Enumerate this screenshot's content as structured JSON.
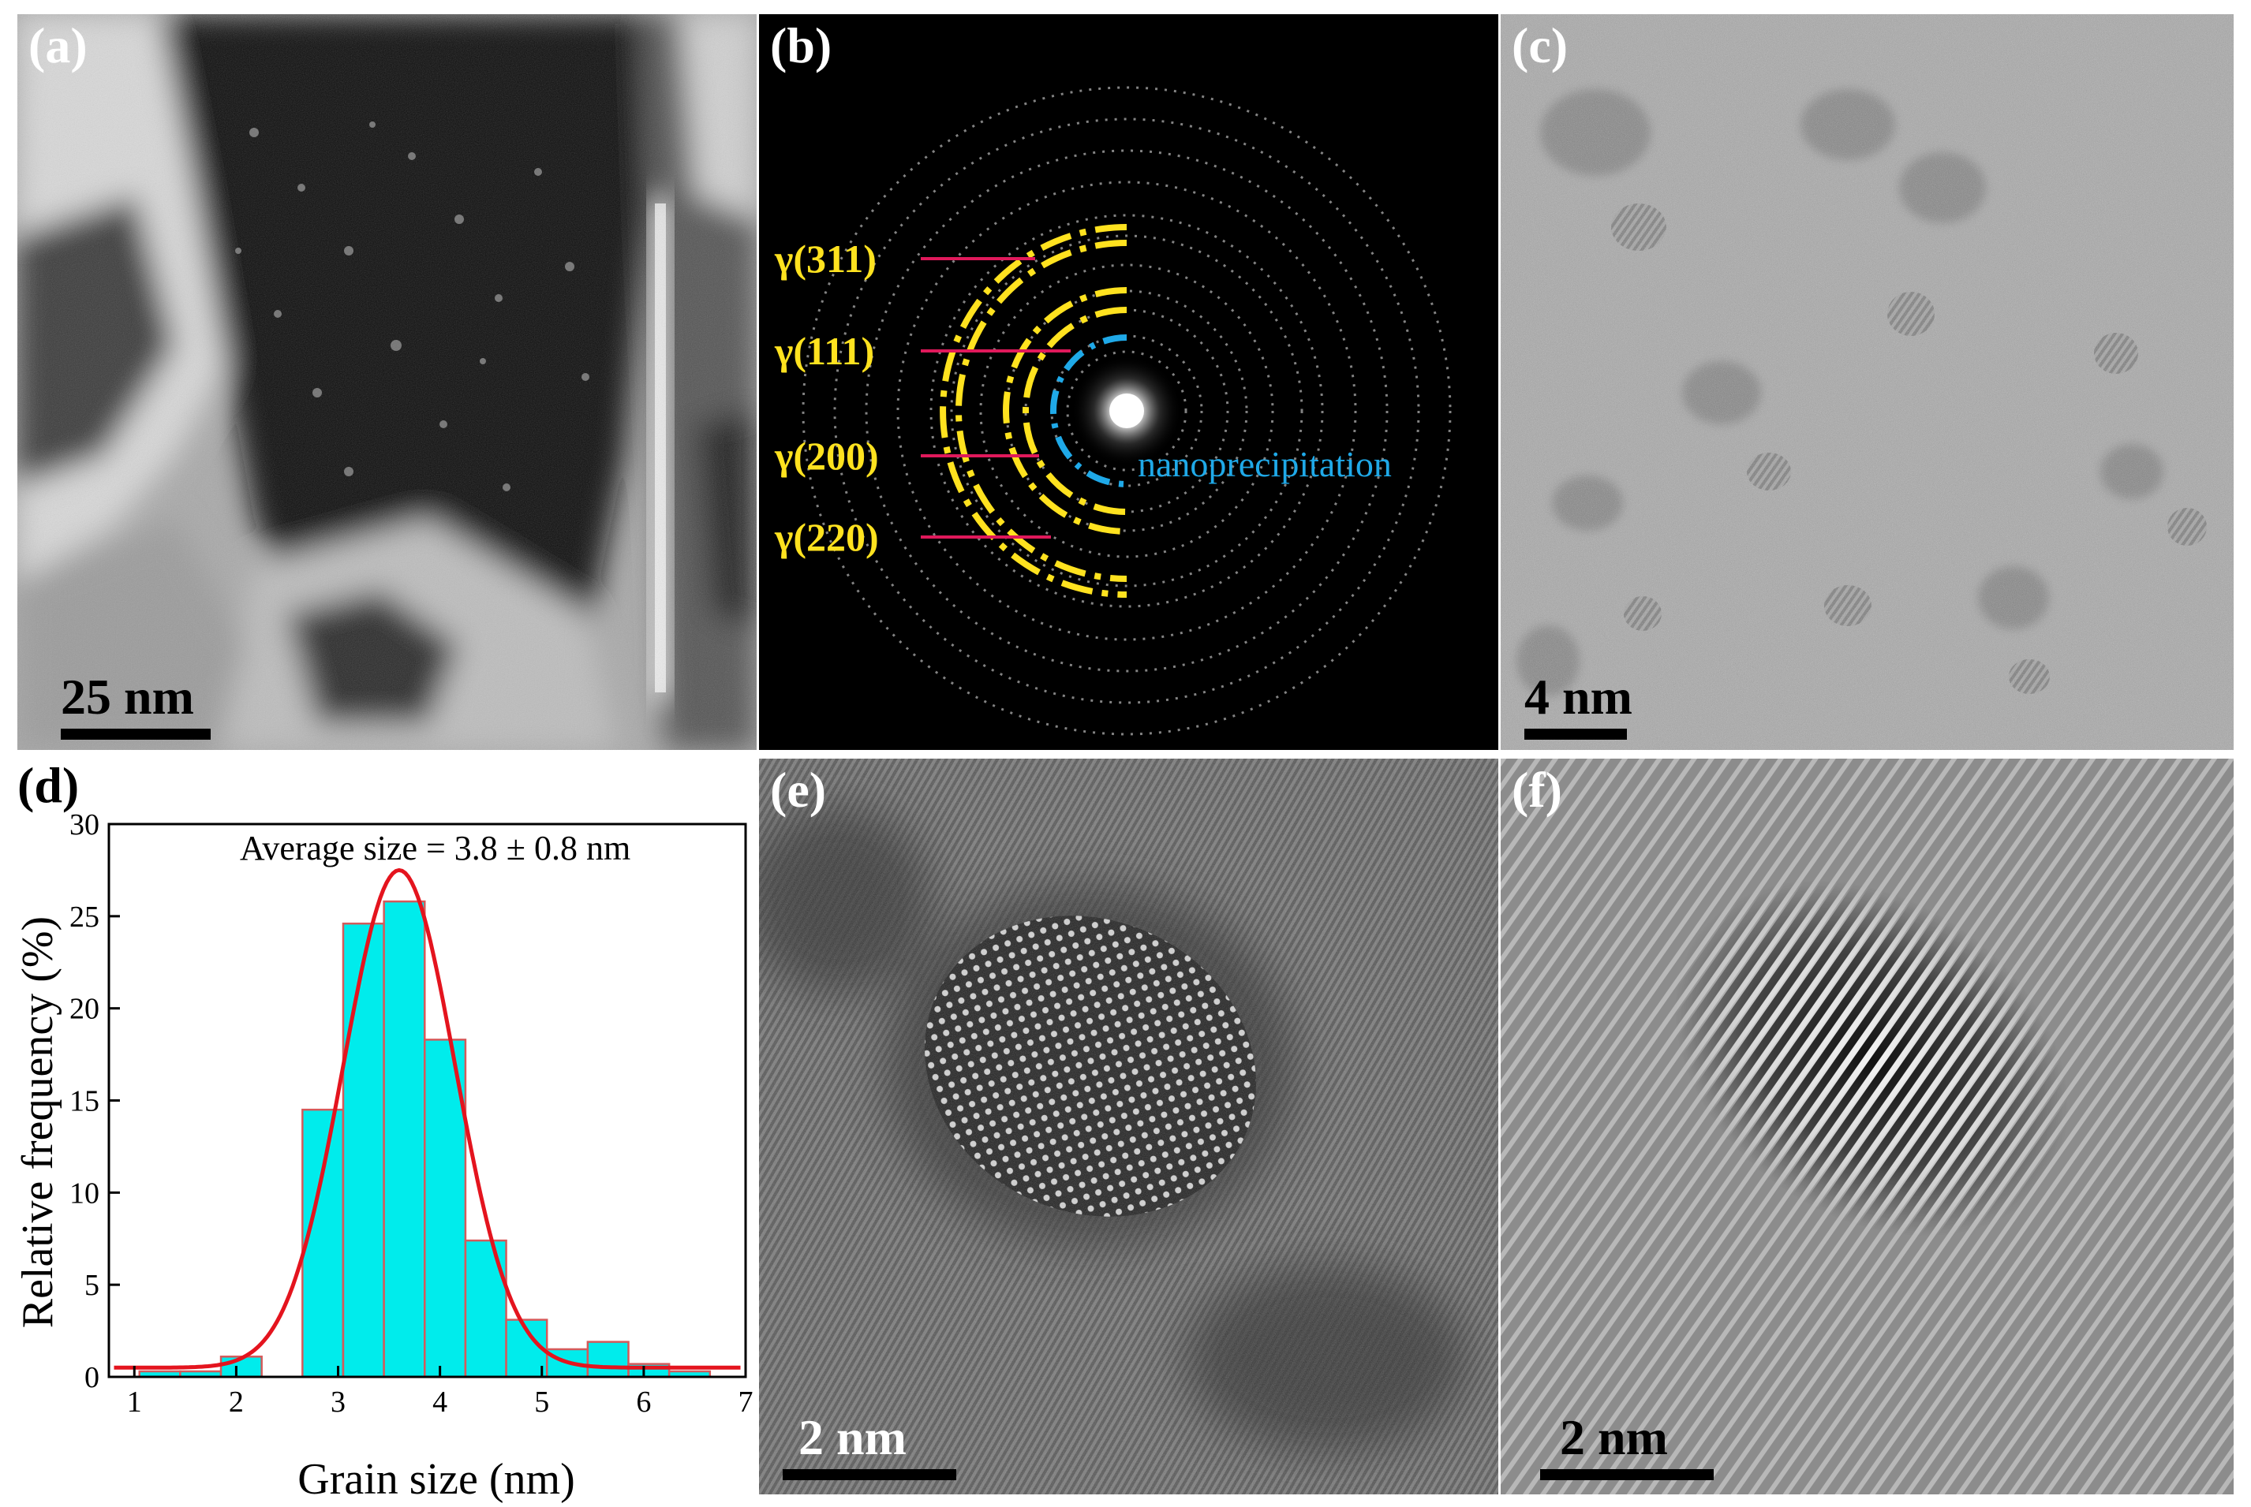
{
  "panels": {
    "a": {
      "label": "(a)",
      "scale_bar": "25 nm"
    },
    "b": {
      "label": "(b)",
      "rings": [
        "γ(311)",
        "γ(111)",
        "γ(200)",
        "γ(220)"
      ],
      "annotation": "nanoprecipitation",
      "colors": {
        "rings": "#ffe21f",
        "leaders": "#e0195b",
        "nano": "#1fa9e8"
      }
    },
    "c": {
      "label": "(c)",
      "scale_bar": "4 nm"
    },
    "d": {
      "label": "(d)"
    },
    "e": {
      "label": "(e)",
      "scale_bar": "2 nm"
    },
    "f": {
      "label": "(f)",
      "scale_bar": "2 nm"
    }
  },
  "chart_data": {
    "type": "bar",
    "title": "Average  size = 3.8 ± 0.8  nm",
    "xlabel": "Grain size (nm)",
    "ylabel": "Relative frequency (%)",
    "xlim": [
      0.75,
      7
    ],
    "ylim": [
      0,
      30
    ],
    "xticks": [
      1,
      2,
      3,
      4,
      5,
      6,
      7
    ],
    "yticks": [
      0,
      5,
      10,
      15,
      20,
      25,
      30
    ],
    "bin_width": 0.4,
    "bins": [
      {
        "center": 1.25,
        "value": 0.3
      },
      {
        "center": 1.65,
        "value": 0.3
      },
      {
        "center": 2.05,
        "value": 1.1
      },
      {
        "center": 2.45,
        "value": 0.0
      },
      {
        "center": 2.85,
        "value": 14.5
      },
      {
        "center": 3.25,
        "value": 24.6
      },
      {
        "center": 3.65,
        "value": 25.8
      },
      {
        "center": 4.05,
        "value": 18.3
      },
      {
        "center": 4.45,
        "value": 7.4
      },
      {
        "center": 4.85,
        "value": 3.1
      },
      {
        "center": 5.25,
        "value": 1.5
      },
      {
        "center": 5.65,
        "value": 1.9
      },
      {
        "center": 6.05,
        "value": 0.7
      },
      {
        "center": 6.45,
        "value": 0.3
      }
    ],
    "fit": {
      "type": "gaussian",
      "mean": 3.6,
      "sigma": 0.55,
      "amplitude": 27.0,
      "baseline": 0.5
    },
    "colors": {
      "bar": "#00ecec",
      "bar_edge": "#d55a5a",
      "fit": "#e4141e"
    }
  }
}
